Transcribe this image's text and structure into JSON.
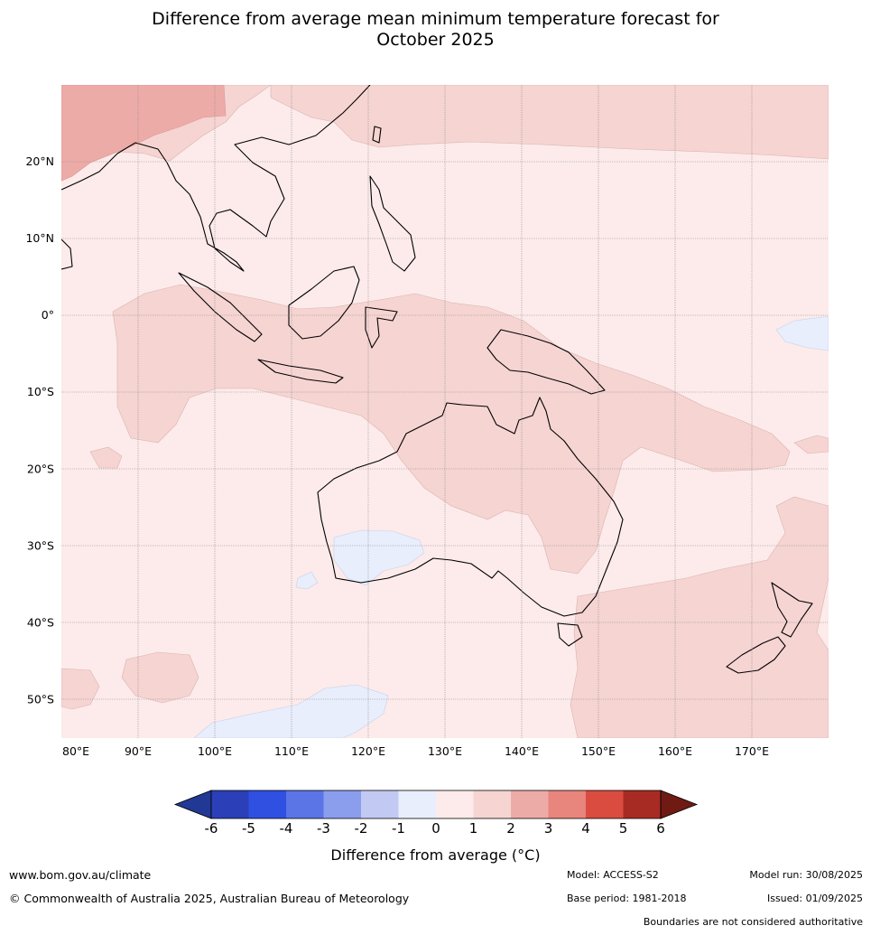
{
  "title_line1": "Difference from average mean minimum temperature forecast for",
  "title_line2": "October 2025",
  "map": {
    "lon_range": [
      80,
      180
    ],
    "lat_range": [
      -55,
      30
    ],
    "lat_ticks": [
      {
        "value": 20,
        "label": "20°N"
      },
      {
        "value": 10,
        "label": "10°N"
      },
      {
        "value": 0,
        "label": "0°"
      },
      {
        "value": -10,
        "label": "10°S"
      },
      {
        "value": -20,
        "label": "20°S"
      },
      {
        "value": -30,
        "label": "30°S"
      },
      {
        "value": -40,
        "label": "40°S"
      },
      {
        "value": -50,
        "label": "50°S"
      }
    ],
    "lon_ticks": [
      {
        "value": 80,
        "label": "80°E"
      },
      {
        "value": 90,
        "label": "90°E"
      },
      {
        "value": 100,
        "label": "100°E"
      },
      {
        "value": 110,
        "label": "110°E"
      },
      {
        "value": 120,
        "label": "120°E"
      },
      {
        "value": 130,
        "label": "130°E"
      },
      {
        "value": 140,
        "label": "140°E"
      },
      {
        "value": 150,
        "label": "150°E"
      },
      {
        "value": 160,
        "label": "160°E"
      },
      {
        "value": 170,
        "label": "170°E"
      }
    ],
    "background_color": "#fcebea",
    "anomaly_colors": {
      "0_to_1": "#fcebea",
      "1_to_2": "#f5d4d2",
      "2_to_3": "#edaba7",
      "-1_to_0": "#e8eefc"
    }
  },
  "colorbar": {
    "ticks": [
      "-6",
      "-5",
      "-4",
      "-3",
      "-2",
      "-1",
      "0",
      "1",
      "2",
      "3",
      "4",
      "5",
      "6"
    ],
    "colors": [
      "#223895",
      "#2b3fb8",
      "#3050e2",
      "#5b74e6",
      "#8b9ded",
      "#c2c9f3",
      "#e8eefc",
      "#fcebea",
      "#f5d4d2",
      "#edaba7",
      "#e8857c",
      "#d94c3f",
      "#a72b23",
      "#701a14"
    ],
    "label": "Difference from average (°C)"
  },
  "footer": {
    "website": "www.bom.gov.au/climate",
    "copyright": "© Commonwealth of Australia 2025, Australian Bureau of Meteorology",
    "model": "Model: ACCESS-S2",
    "base_period": "Base period: 1981-2018",
    "model_run": "Model run: 30/08/2025",
    "issued": "Issued: 01/09/2025",
    "disclaimer": "Boundaries are not considered authoritative"
  }
}
